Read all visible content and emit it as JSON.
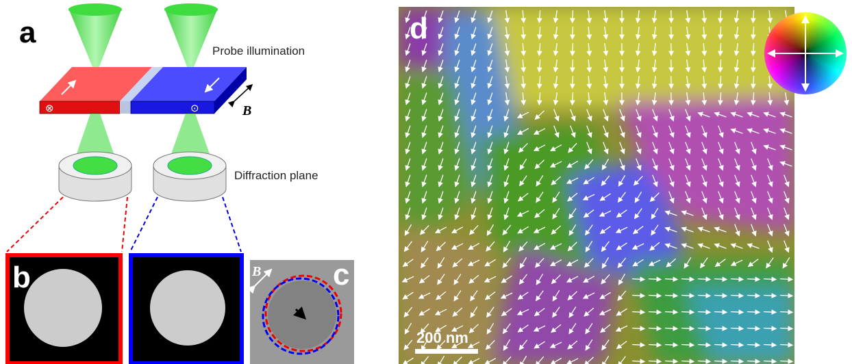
{
  "panels": {
    "a": {
      "label": "a",
      "annotations": [
        "Probe illumination",
        "Diffraction plane"
      ],
      "field_label": "B",
      "domain_symbols": [
        "⊗",
        "⊙"
      ]
    },
    "b": {
      "label": "b"
    },
    "c": {
      "label": "c",
      "field_label": "B"
    },
    "d": {
      "label": "d",
      "scale_bar": "200 nm"
    }
  }
}
